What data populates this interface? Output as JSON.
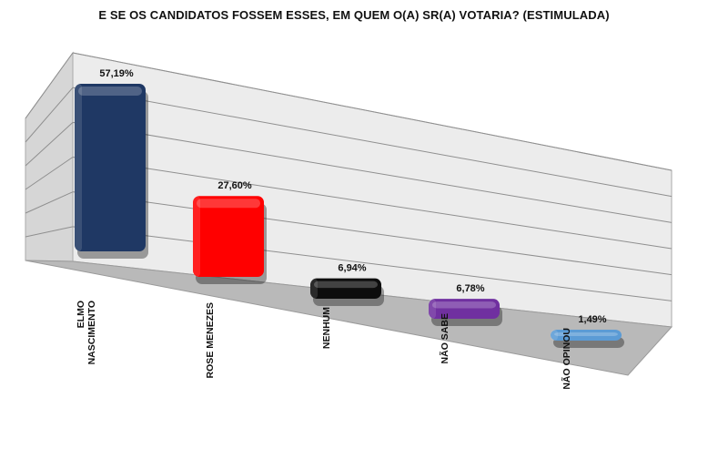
{
  "chart_data": {
    "type": "bar",
    "title": "E SE OS CANDIDATOS FOSSEM ESSES, EM QUEM O(A) SR(A) VOTARIA? (ESTIMULADA)",
    "categories": [
      [
        "ELMO",
        "NASCIMENTO"
      ],
      [
        "ROSE MENEZES"
      ],
      [
        "NENHUM"
      ],
      [
        "NÃO SABE"
      ],
      [
        "NÃO OPINOU"
      ]
    ],
    "values": [
      57.19,
      27.6,
      6.94,
      6.78,
      1.49
    ],
    "value_labels": [
      "57,19%",
      "27,60%",
      "6,94%",
      "6,78%",
      "1,49%"
    ],
    "colors": [
      "#1f3864",
      "#ff0000",
      "#0d0d0d",
      "#7030a0",
      "#5b9bd5"
    ],
    "ylim": [
      0,
      60
    ],
    "grid": true,
    "legend": "none",
    "style": "3d"
  }
}
